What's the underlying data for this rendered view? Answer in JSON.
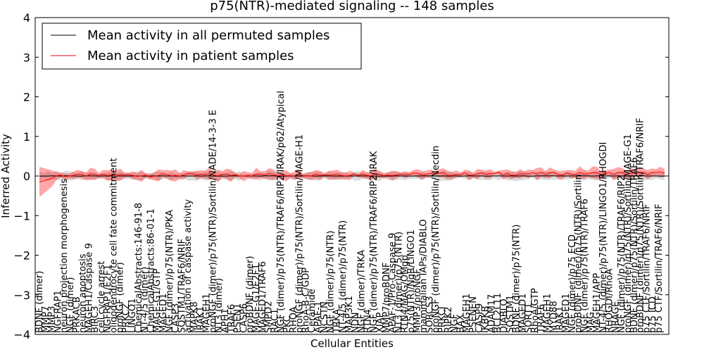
{
  "chart_data": {
    "type": "line",
    "title": "p75(NTR)-mediated signaling -- 148 samples",
    "xlabel": "Cellular Entities",
    "ylabel": "Inferred Activity",
    "ylim": [
      -4,
      4
    ],
    "yticks": [
      -4,
      -3,
      -2,
      -1,
      0,
      1,
      2,
      3,
      4
    ],
    "ytick_labels": [
      "−4",
      "−3",
      "−2",
      "−1",
      "0",
      "1",
      "2",
      "3",
      "4"
    ],
    "n_points": 148,
    "legend": {
      "placement": "top-left",
      "entries": [
        {
          "label": "Mean activity in all permuted samples",
          "color": "#000000"
        },
        {
          "label": "Mean activity in patient samples",
          "color": "#ff0000"
        }
      ]
    },
    "x_labels": [
      "BDNF (dimer)",
      "MMP7",
      "MMP3",
      "NGFRAP1",
      "neuron projection morphogenesis",
      "NGF (dimer)",
      "PRKACB",
      "neuron apoptosis",
      "MAGEH1/Caspase 9",
      "BIRC3",
      "cell cycle arrest",
      "NGFRAP1/E2F1",
      "oligodendrocyte cell fate commitment",
      "proNGF (dimer)",
      "PRKCZ",
      "LINGO1",
      "ChemicalAbstracts:146-91-8",
      "NT-4/5 (dimer)",
      "ChemicalAbstracts:86-01-1",
      "MAGE-G1/GTP",
      "MAGED1",
      "NGF (dimer)/p75(NTR)/PKA",
      "CASP3",
      "SQSTM1/TRAF6/NRIF",
      "activation of caspase activity",
      "MAPK8",
      "IRAK1",
      "MAGEH1",
      "proNGF (dimer)/p75(NTR)/Sortilin/NADE/14-3-3 E",
      "NT3 (dimer)",
      "APH1",
      "TRAF6",
      "PSEN1",
      "CASP6",
      "proBDNF (dimer)",
      "MAGE-G1/E2F1",
      "MAGED1/TRAF6",
      "SMPD2",
      "RAC1",
      "NGF (dimer)/p75(NTR)/TRAF6/RIP2/IRAK/p62/Atypical",
      "PKC",
      "RHOA",
      "proNGF (dimer)/p75(NTR)/Sortilin/MAGE-H1",
      "RhoA-B-C/GDP",
      "Ceramide",
      "APAF-1",
      "NCSTN",
      "NGF (dimer)/p75(NTR)",
      "TRKA",
      "NT-4/5 (dimer)/p75(NTR)",
      "MAP3K1",
      "NDN",
      "NGF (dimer)/TRKA",
      "RTN4",
      "NGF (dimer)/p75(NTR)/TRAF6/RIP2/IRAK",
      "XIAP",
      "MMP7/proBDNF",
      "APAF-1/Pro-Caspase 9",
      "NT3 (dimer)/p75(NTR)",
      "RTN4/MAG/OMgp",
      "p75(NTR)/NgR/LINGO1",
      "MMP3/proNGF",
      "mammalian IAPs/DIABLO",
      "SORCS3",
      "proNGF (dimer)/p75(NTR)/Sortilin/Necdin",
      "PRKCI",
      "RIPK2",
      "NGF",
      "BAX",
      "MAGEH1",
      "PSENEN",
      "CASP9",
      "IKBKB",
      "ADAM17",
      "BCL2L11",
      "DIABLO",
      "SQSTM1",
      "BDNF (dimer)/p75(NTR)",
      "MAGED1",
      "SORT1",
      "RhoA/GTP",
      "TRAF6",
      "MAGEH1",
      "MYD88",
      "IRAK1",
      "MAGED1",
      "NGF (dimer)/p75 ECD",
      "proBDNF (dimer)/p75(NTR)/Sortilin",
      "NGF (dimer)/p75(NTR)/TRAF6",
      "MAG",
      "MAGEH1/APP",
      "NT-4/5 (dimer)/p75(NTR)/LINGO1/RHOGDI",
      "RHOGDI/RhoA",
      "NRAGE",
      "NGF (dimer)/p75(NTR)/TRAF6/RIP2",
      "proNGF (dimer)/p75(NTR)/Sortilin/MAGE-G1",
      "BDNF (dimer)/p75(NTR)/Sortilin/TRAF6",
      "proBDNF (dimer)/p75(NTR)/Sortilin/TRAF6/NRIF",
      "p75 CTF/Sortilin/TRAF6/NRIF",
      "p75 ICD",
      "p75 CTF/Sortilin/TRAF6/NRIF"
    ]
  }
}
